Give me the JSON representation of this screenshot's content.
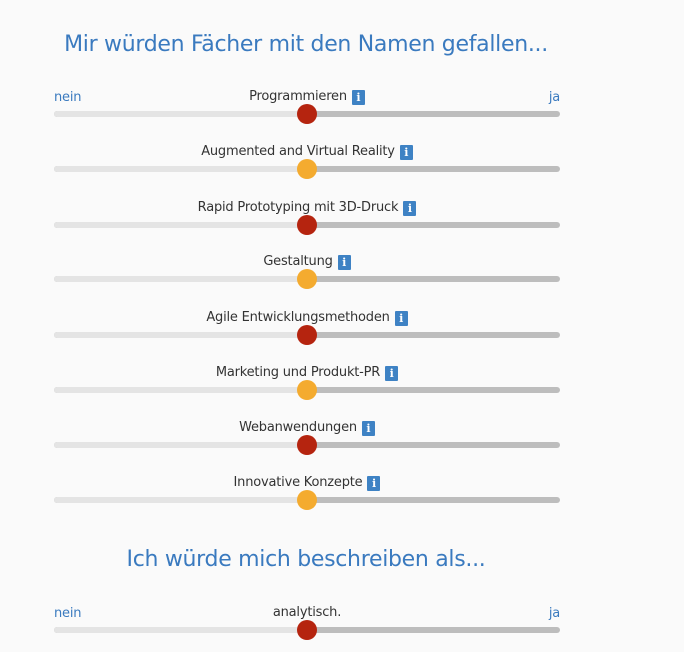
{
  "section1": {
    "title": "Mir würden Fächer mit den Namen gefallen...",
    "end_left": "nein",
    "end_right": "ja",
    "info_glyph": "i",
    "sliders": [
      {
        "label": "Programmieren",
        "has_info": true,
        "value": 0.5,
        "thumb_color": "#b5240f"
      },
      {
        "label": "Augmented and Virtual Reality",
        "has_info": true,
        "value": 0.5,
        "thumb_color": "#f4ab2f"
      },
      {
        "label": "Rapid Prototyping mit 3D-Druck",
        "has_info": true,
        "value": 0.5,
        "thumb_color": "#b5240f"
      },
      {
        "label": "Gestaltung",
        "has_info": true,
        "value": 0.5,
        "thumb_color": "#f4ab2f"
      },
      {
        "label": "Agile Entwicklungsmethoden",
        "has_info": true,
        "value": 0.5,
        "thumb_color": "#b5240f"
      },
      {
        "label": "Marketing und Produkt-PR",
        "has_info": true,
        "value": 0.5,
        "thumb_color": "#f4ab2f"
      },
      {
        "label": "Webanwendungen",
        "has_info": true,
        "value": 0.5,
        "thumb_color": "#b5240f"
      },
      {
        "label": "Innovative Konzepte",
        "has_info": true,
        "value": 0.5,
        "thumb_color": "#f4ab2f"
      }
    ]
  },
  "section2": {
    "title": "Ich würde mich beschreiben als...",
    "end_left": "nein",
    "end_right": "ja",
    "sliders": [
      {
        "label": "analytisch.",
        "has_info": false,
        "value": 0.5,
        "thumb_color": "#b5240f"
      }
    ]
  },
  "colors": {
    "accent": "#3a7abf",
    "track": "#bdbdbd",
    "track_left": "#e4e4e4",
    "thumb_red": "#b5240f",
    "thumb_orange": "#f4ab2f",
    "info_bg": "#3e82c4"
  },
  "icons": {
    "info": "info-icon",
    "thumb": "slider-thumb"
  }
}
